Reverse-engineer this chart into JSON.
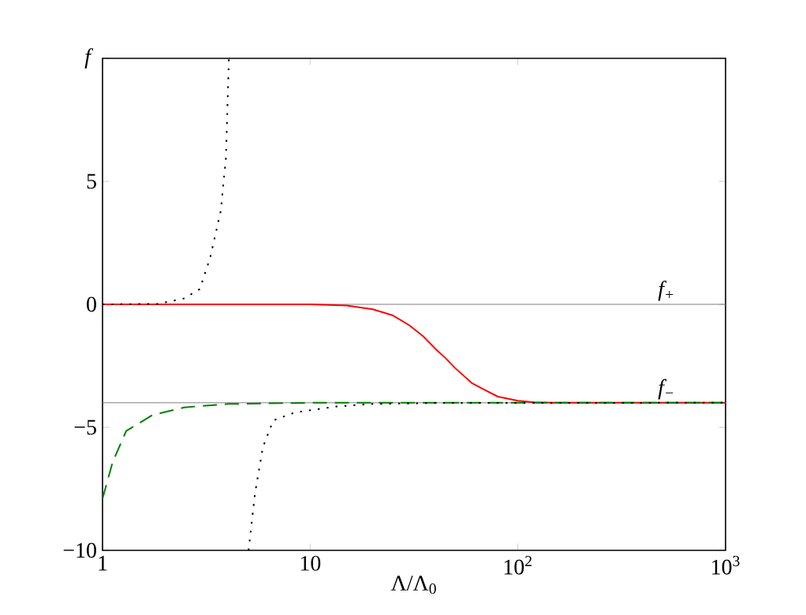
{
  "chart_data": {
    "type": "line",
    "log": "x",
    "xlabel": "Λ/Λ$_{0}$",
    "ylabel": "f",
    "xlim": [
      1,
      1000
    ],
    "ylim": [
      -10,
      10
    ],
    "xticks": [
      1,
      10,
      {
        "value": 100,
        "label": "10$^{2}$"
      },
      {
        "value": 1000,
        "label": "10$^{3}$"
      }
    ],
    "yticks": [
      {
        "value": -10,
        "label": "−10"
      },
      {
        "value": -5,
        "label": "−5"
      },
      0,
      5,
      {
        "value": 10,
        "label": null
      }
    ],
    "ref_lines": [
      {
        "axis": "y",
        "value": 0,
        "label": "f$_{+}$",
        "color": "#808080"
      },
      {
        "axis": "y",
        "value": -4,
        "label": "f$_{−}$",
        "color": "#808080"
      }
    ],
    "series": [
      {
        "color": "#ff0000",
        "line_style": "solid",
        "x": [
          1,
          10,
          15,
          20,
          25,
          30,
          35,
          40,
          45,
          50,
          60,
          70,
          80,
          100,
          120,
          150,
          1000
        ],
        "values": [
          0,
          0,
          -0.05,
          -0.2,
          -0.45,
          -0.85,
          -1.3,
          -1.8,
          -2.2,
          -2.6,
          -3.2,
          -3.5,
          -3.75,
          -3.92,
          -3.98,
          -4,
          -4
        ]
      },
      {
        "color": "#008000",
        "line_style": "dashed",
        "x": [
          1,
          1.12,
          1.3,
          1.74,
          2.47,
          4,
          10,
          1000
        ],
        "values": [
          -7.9,
          -6.4,
          -5.15,
          -4.5,
          -4.19,
          -4.05,
          -4,
          -4
        ]
      },
      {
        "color": "#000000",
        "line_style": "dotted",
        "x": [
          1,
          1.85,
          2.47,
          2.94,
          3.3,
          3.71,
          3.93,
          4.06,
          4.5,
          5.05,
          5.42,
          5.92,
          6.64,
          8.4,
          13.4,
          20,
          40,
          1000
        ],
        "values": [
          0,
          0.02,
          0.24,
          0.62,
          1.9,
          3.8,
          5.96,
          10,
          null,
          -10,
          -7.7,
          -5.8,
          -4.72,
          -4.4,
          -4.15,
          -4.05,
          -4.01,
          -4
        ]
      }
    ],
    "grid": false
  }
}
